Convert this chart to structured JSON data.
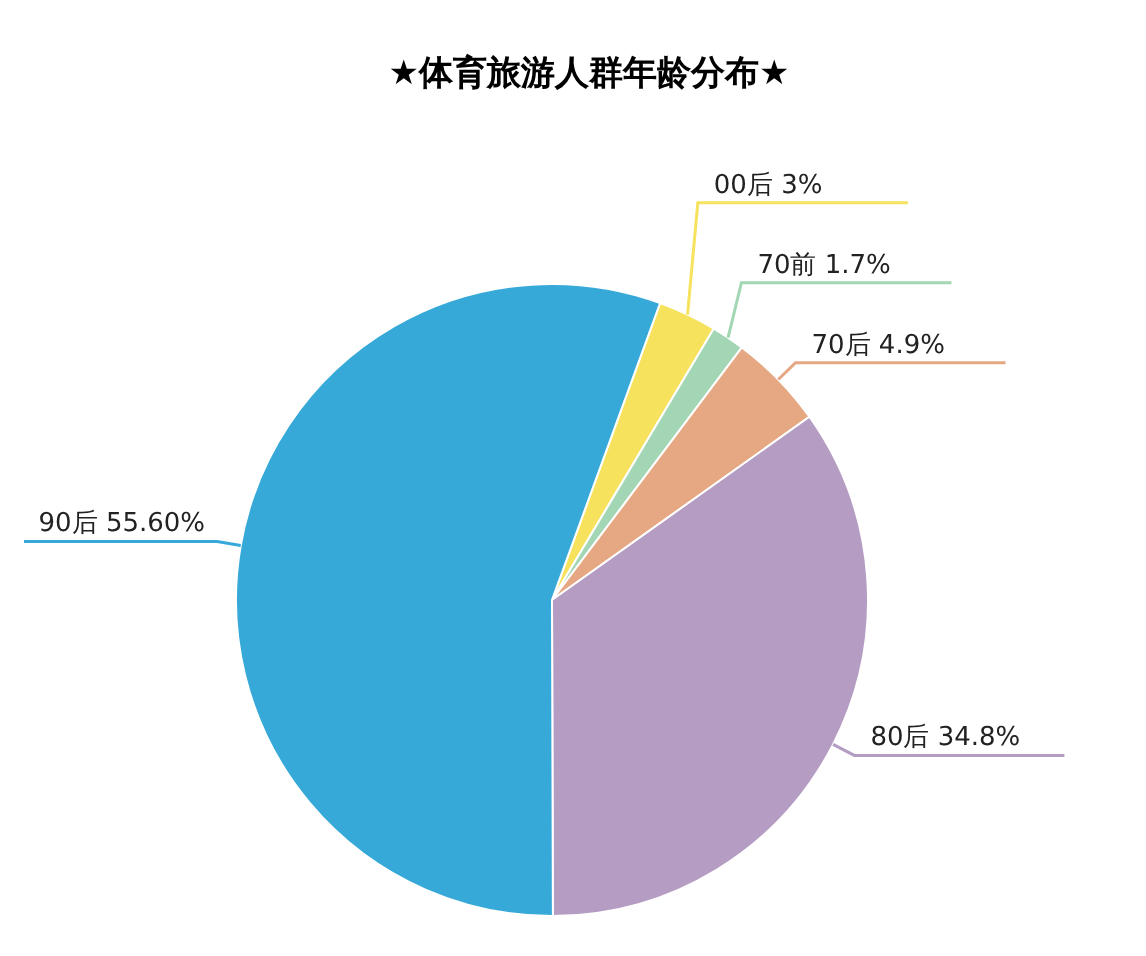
{
  "chart_data": {
    "type": "pie",
    "title": "★体育旅游人群年龄分布★",
    "categories": [
      "00后",
      "70前",
      "70后",
      "80后",
      "90后"
    ],
    "values": [
      3,
      1.7,
      4.9,
      34.8,
      55.6
    ],
    "value_labels": [
      "3%",
      "1.7%",
      "4.9%",
      "34.8%",
      "55.60%"
    ],
    "colors": [
      "#f6e25c",
      "#a3d6b4",
      "#e6a882",
      "#b59cc2",
      "#36a9d8"
    ],
    "legend": false
  }
}
